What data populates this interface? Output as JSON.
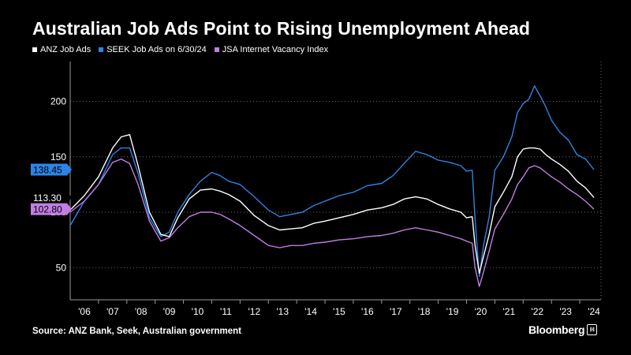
{
  "title": "Australian Job Ads Point to Rising Unemployment Ahead",
  "source": "Source: ANZ Bank, Seek, Australian government",
  "logo": "Bloomberg",
  "logo_mark": "ℍ",
  "legend": [
    {
      "label": "ANZ Job Ads",
      "color": "#ffffff"
    },
    {
      "label": "SEEK Job Ads on 6/30/24",
      "color": "#2e84e6"
    },
    {
      "label": "JSA Internet Vacancy Index",
      "color": "#c17ee3"
    }
  ],
  "chart_data": {
    "type": "line",
    "xlabel": "",
    "ylabel": "",
    "xlim": [
      2006.0,
      2024.75
    ],
    "ylim": [
      21,
      236
    ],
    "grid": true,
    "legend_position": "top-left",
    "x_ticks": [
      {
        "label": "'06",
        "value": 2006.5
      },
      {
        "label": "'07",
        "value": 2007.5
      },
      {
        "label": "'08",
        "value": 2008.5
      },
      {
        "label": "'09",
        "value": 2009.5
      },
      {
        "label": "'10",
        "value": 2010.5
      },
      {
        "label": "'11",
        "value": 2011.5
      },
      {
        "label": "'12",
        "value": 2012.5
      },
      {
        "label": "'13",
        "value": 2013.5
      },
      {
        "label": "'14",
        "value": 2014.5
      },
      {
        "label": "'15",
        "value": 2015.5
      },
      {
        "label": "'16",
        "value": 2016.5
      },
      {
        "label": "'17",
        "value": 2017.5
      },
      {
        "label": "'18",
        "value": 2018.5
      },
      {
        "label": "'19",
        "value": 2019.5
      },
      {
        "label": "'20",
        "value": 2020.5
      },
      {
        "label": "'21",
        "value": 2021.5
      },
      {
        "label": "'22",
        "value": 2022.5
      },
      {
        "label": "'23",
        "value": 2023.5
      },
      {
        "label": "'24",
        "value": 2024.5
      }
    ],
    "y_ticks": [
      {
        "label": "50",
        "value": 50
      },
      {
        "label": "100",
        "value": 100
      },
      {
        "label": "150",
        "value": 150
      },
      {
        "label": "200",
        "value": 200
      }
    ],
    "series": [
      {
        "name": "SEEK Job Ads on 6/30/24",
        "color": "#2e84e6",
        "last_value_label": "138.45",
        "last_value": 138.45,
        "x": [
          2006.0,
          2006.5,
          2007.0,
          2007.5,
          2007.8,
          2008.1,
          2008.4,
          2008.8,
          2009.2,
          2009.5,
          2009.8,
          2010.2,
          2010.6,
          2011.0,
          2011.3,
          2011.6,
          2012.0,
          2012.5,
          2013.0,
          2013.4,
          2013.8,
          2014.2,
          2014.6,
          2015.0,
          2015.5,
          2016.0,
          2016.5,
          2017.0,
          2017.4,
          2017.8,
          2018.2,
          2018.6,
          2019.0,
          2019.4,
          2019.8,
          2020.0,
          2020.2,
          2020.3,
          2020.45,
          2020.6,
          2020.8,
          2021.0,
          2021.3,
          2021.6,
          2021.8,
          2022.0,
          2022.2,
          2022.4,
          2022.6,
          2022.8,
          2023.0,
          2023.3,
          2023.6,
          2023.9,
          2024.2,
          2024.5
        ],
        "values": [
          88,
          110,
          125,
          152,
          158,
          158,
          135,
          95,
          78,
          82,
          100,
          116,
          128,
          136,
          133,
          128,
          125,
          114,
          102,
          96,
          98,
          100,
          106,
          110,
          115,
          118,
          124,
          126,
          133,
          144,
          155,
          152,
          147,
          145,
          142,
          137,
          138,
          94,
          42,
          70,
          96,
          138,
          150,
          168,
          190,
          198,
          202,
          214,
          205,
          195,
          183,
          172,
          165,
          152,
          148,
          138.45
        ]
      },
      {
        "name": "ANZ Job Ads",
        "color": "#ffffff",
        "last_value_label": "113.30",
        "last_value": 113.3,
        "x": [
          2006.0,
          2006.5,
          2007.0,
          2007.5,
          2007.8,
          2008.1,
          2008.4,
          2008.8,
          2009.2,
          2009.5,
          2009.8,
          2010.2,
          2010.6,
          2011.0,
          2011.3,
          2011.6,
          2012.0,
          2012.5,
          2013.0,
          2013.4,
          2013.8,
          2014.2,
          2014.6,
          2015.0,
          2015.5,
          2016.0,
          2016.5,
          2017.0,
          2017.4,
          2017.8,
          2018.2,
          2018.6,
          2019.0,
          2019.4,
          2019.8,
          2020.0,
          2020.2,
          2020.3,
          2020.45,
          2020.6,
          2020.8,
          2021.0,
          2021.3,
          2021.6,
          2021.8,
          2022.0,
          2022.2,
          2022.4,
          2022.6,
          2022.8,
          2023.0,
          2023.3,
          2023.6,
          2023.9,
          2024.2,
          2024.5
        ],
        "values": [
          102,
          115,
          132,
          158,
          168,
          170,
          142,
          100,
          80,
          78,
          95,
          112,
          120,
          121,
          119,
          116,
          110,
          97,
          88,
          84,
          85,
          86,
          90,
          92,
          95,
          98,
          102,
          104,
          107,
          112,
          114,
          112,
          107,
          103,
          100,
          95,
          96,
          70,
          45,
          60,
          80,
          105,
          118,
          132,
          150,
          157,
          158,
          158,
          157,
          152,
          148,
          143,
          137,
          128,
          122,
          113.3
        ]
      },
      {
        "name": "JSA Internet Vacancy Index",
        "color": "#c17ee3",
        "last_value_label": "102.80",
        "last_value": 102.8,
        "x": [
          2006.0,
          2006.5,
          2007.0,
          2007.5,
          2007.8,
          2008.1,
          2008.4,
          2008.8,
          2009.2,
          2009.5,
          2009.8,
          2010.2,
          2010.6,
          2011.0,
          2011.3,
          2011.6,
          2012.0,
          2012.5,
          2013.0,
          2013.4,
          2013.8,
          2014.2,
          2014.6,
          2015.0,
          2015.5,
          2016.0,
          2016.5,
          2017.0,
          2017.4,
          2017.8,
          2018.2,
          2018.6,
          2019.0,
          2019.4,
          2019.8,
          2020.0,
          2020.2,
          2020.3,
          2020.45,
          2020.6,
          2020.8,
          2021.0,
          2021.3,
          2021.6,
          2021.8,
          2022.0,
          2022.2,
          2022.4,
          2022.6,
          2022.8,
          2023.0,
          2023.3,
          2023.6,
          2023.9,
          2024.2,
          2024.5
        ],
        "values": [
          100,
          110,
          125,
          145,
          148,
          144,
          125,
          92,
          74,
          77,
          86,
          96,
          100,
          100,
          98,
          94,
          88,
          79,
          70,
          68,
          70,
          70,
          72,
          73,
          75,
          76,
          78,
          79,
          81,
          84,
          86,
          84,
          82,
          79,
          76,
          74,
          72,
          50,
          33,
          46,
          65,
          85,
          98,
          112,
          125,
          132,
          140,
          142,
          140,
          136,
          132,
          127,
          121,
          116,
          110,
          102.8
        ]
      }
    ]
  }
}
